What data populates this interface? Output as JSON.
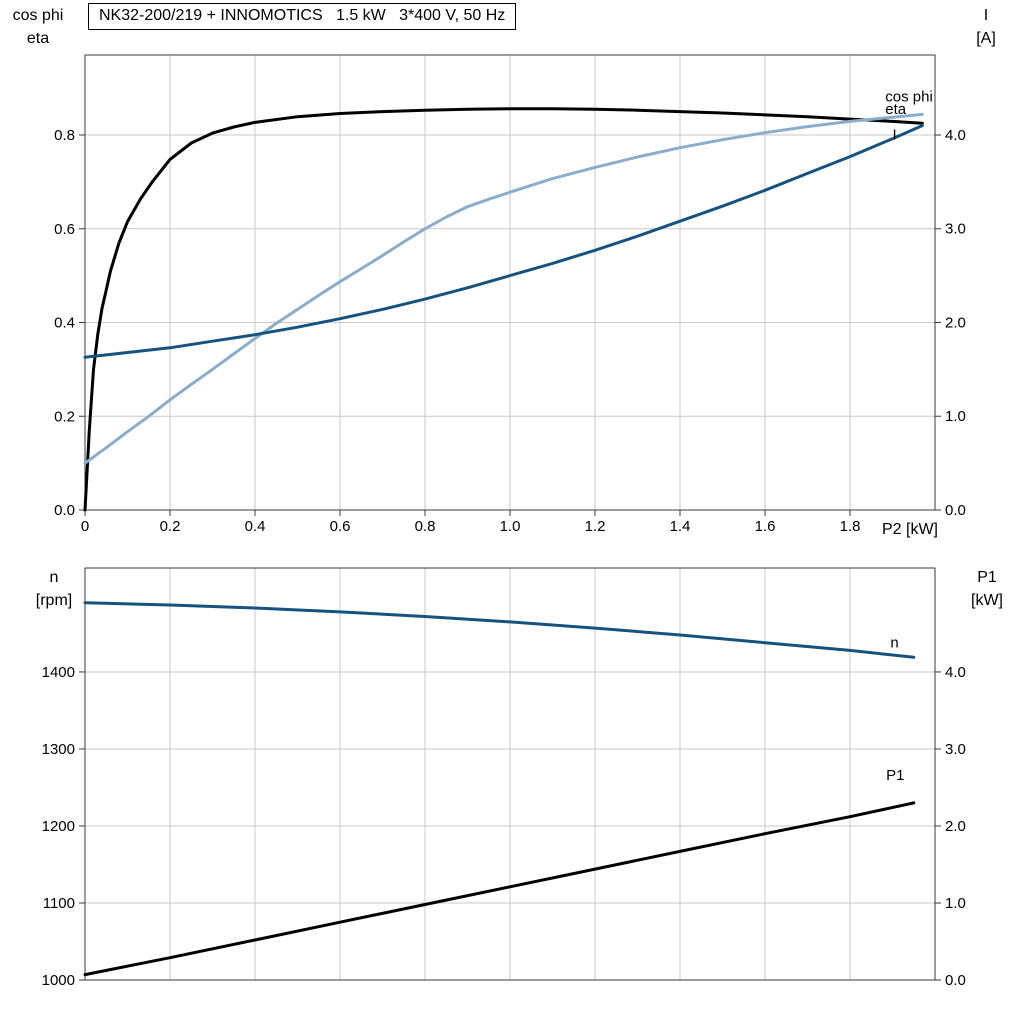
{
  "theme": {
    "background": "#ffffff",
    "frame": "#3a3a3a",
    "grid": "#c9c9c9",
    "tick_text": "#000000",
    "black": "#000000",
    "dark_blue": "#16527f",
    "light_blue": "#8aadcc"
  },
  "title_box": {
    "text": "NK32-200/219 + INNOMOTICS   1.5 kW   3*400 V, 50 Hz"
  },
  "chart_data": [
    {
      "id": "electrical-curves",
      "type": "line",
      "title": "NK32-200/219 + INNOMOTICS   1.5 kW   3*400 V, 50 Hz",
      "xlabel": "P2 [kW]",
      "xlim": [
        0,
        2
      ],
      "x_ticks": [
        0,
        0.2,
        0.4,
        0.6,
        0.8,
        1.0,
        1.2,
        1.4,
        1.6,
        1.8
      ],
      "x_tick_labels": [
        "0",
        "0.2",
        "0.4",
        "0.6",
        "0.8",
        "1.0",
        "1.2",
        "1.4",
        "1.6",
        "1.8"
      ],
      "grid": true,
      "legend_position": "curve-end-labels",
      "left_axis": {
        "title": [
          "cos phi",
          "eta"
        ],
        "lim": [
          0,
          0.9707
        ],
        "ticks": [
          0,
          0.2,
          0.4,
          0.6,
          0.8
        ],
        "tick_labels": [
          "0.0",
          "0.2",
          "0.4",
          "0.6",
          "0.8"
        ]
      },
      "right_axis": {
        "title": [
          "I",
          "[A]"
        ],
        "lim": [
          0,
          4.8533
        ],
        "ticks": [
          0,
          1,
          2,
          3,
          4
        ],
        "tick_labels": [
          "0.0",
          "1.0",
          "2.0",
          "3.0",
          "4.0"
        ]
      },
      "series": [
        {
          "name": "eta",
          "axis": "left",
          "color": "#000000",
          "label": {
            "text": "eta",
            "x": 1.883,
            "y": 0.845
          },
          "points": [
            [
              0,
              0
            ],
            [
              0.01,
              0.17
            ],
            [
              0.02,
              0.3
            ],
            [
              0.03,
              0.375
            ],
            [
              0.04,
              0.43
            ],
            [
              0.05,
              0.47
            ],
            [
              0.06,
              0.51
            ],
            [
              0.08,
              0.57
            ],
            [
              0.1,
              0.615
            ],
            [
              0.13,
              0.663
            ],
            [
              0.16,
              0.702
            ],
            [
              0.2,
              0.748
            ],
            [
              0.25,
              0.783
            ],
            [
              0.3,
              0.804
            ],
            [
              0.35,
              0.817
            ],
            [
              0.4,
              0.827
            ],
            [
              0.5,
              0.839
            ],
            [
              0.6,
              0.846
            ],
            [
              0.7,
              0.85
            ],
            [
              0.8,
              0.853
            ],
            [
              0.9,
              0.855
            ],
            [
              1.0,
              0.856
            ],
            [
              1.1,
              0.856
            ],
            [
              1.2,
              0.855
            ],
            [
              1.3,
              0.853
            ],
            [
              1.4,
              0.85
            ],
            [
              1.5,
              0.847
            ],
            [
              1.6,
              0.843
            ],
            [
              1.7,
              0.839
            ],
            [
              1.8,
              0.834
            ],
            [
              1.9,
              0.829
            ],
            [
              1.97,
              0.825
            ]
          ]
        },
        {
          "name": "cos phi",
          "axis": "left",
          "color": "#8aadcc",
          "label": {
            "text": "cos phi",
            "x": 1.883,
            "y": 0.872
          },
          "points": [
            [
              0,
              0.1
            ],
            [
              0.05,
              0.133
            ],
            [
              0.1,
              0.167
            ],
            [
              0.15,
              0.2
            ],
            [
              0.2,
              0.235
            ],
            [
              0.25,
              0.268
            ],
            [
              0.3,
              0.3
            ],
            [
              0.35,
              0.333
            ],
            [
              0.4,
              0.366
            ],
            [
              0.45,
              0.398
            ],
            [
              0.5,
              0.428
            ],
            [
              0.55,
              0.458
            ],
            [
              0.6,
              0.487
            ],
            [
              0.65,
              0.515
            ],
            [
              0.7,
              0.543
            ],
            [
              0.75,
              0.572
            ],
            [
              0.8,
              0.6
            ],
            [
              0.85,
              0.625
            ],
            [
              0.9,
              0.647
            ],
            [
              0.95,
              0.663
            ],
            [
              1.0,
              0.678
            ],
            [
              1.1,
              0.707
            ],
            [
              1.2,
              0.731
            ],
            [
              1.3,
              0.753
            ],
            [
              1.4,
              0.773
            ],
            [
              1.5,
              0.79
            ],
            [
              1.6,
              0.805
            ],
            [
              1.7,
              0.818
            ],
            [
              1.8,
              0.829
            ],
            [
              1.9,
              0.838
            ],
            [
              1.97,
              0.844
            ]
          ]
        },
        {
          "name": "I",
          "axis": "right",
          "color": "#16527f",
          "label": {
            "text": "I",
            "x": 1.9,
            "y": 3.95
          },
          "points": [
            [
              0,
              1.63
            ],
            [
              0.1,
              1.68
            ],
            [
              0.2,
              1.73
            ],
            [
              0.3,
              1.8
            ],
            [
              0.4,
              1.87
            ],
            [
              0.5,
              1.95
            ],
            [
              0.6,
              2.04
            ],
            [
              0.7,
              2.14
            ],
            [
              0.8,
              2.25
            ],
            [
              0.9,
              2.37
            ],
            [
              1.0,
              2.5
            ],
            [
              1.1,
              2.63
            ],
            [
              1.2,
              2.77
            ],
            [
              1.3,
              2.92
            ],
            [
              1.4,
              3.08
            ],
            [
              1.5,
              3.24
            ],
            [
              1.6,
              3.41
            ],
            [
              1.7,
              3.59
            ],
            [
              1.8,
              3.77
            ],
            [
              1.9,
              3.96
            ],
            [
              1.97,
              4.1
            ]
          ]
        }
      ]
    },
    {
      "id": "speed-power-curves",
      "type": "line",
      "title": "",
      "xlabel": "",
      "xlim": [
        0,
        2
      ],
      "x_ticks": [
        0,
        0.2,
        0.4,
        0.6,
        0.8,
        1.0,
        1.2,
        1.4,
        1.6,
        1.8
      ],
      "x_tick_labels": [],
      "grid": true,
      "legend_position": "curve-end-labels",
      "left_axis": {
        "title": [
          "n",
          "[rpm]"
        ],
        "lim": [
          1000,
          1535
        ],
        "ticks": [
          1000,
          1100,
          1200,
          1300,
          1400
        ],
        "tick_labels": [
          "1000",
          "1100",
          "1200",
          "1300",
          "1400"
        ]
      },
      "right_axis": {
        "title": [
          "P1",
          "[kW]"
        ],
        "lim": [
          0,
          5.35
        ],
        "ticks": [
          0,
          1,
          2,
          3,
          4
        ],
        "tick_labels": [
          "0.0",
          "1.0",
          "2.0",
          "3.0",
          "4.0"
        ]
      },
      "series": [
        {
          "name": "n",
          "axis": "left",
          "color": "#16527f",
          "label": {
            "text": "n",
            "x": 1.895,
            "y": 1432
          },
          "points": [
            [
              0,
              1490
            ],
            [
              0.2,
              1487
            ],
            [
              0.4,
              1483
            ],
            [
              0.6,
              1478
            ],
            [
              0.8,
              1472
            ],
            [
              1.0,
              1465
            ],
            [
              1.2,
              1457
            ],
            [
              1.4,
              1448
            ],
            [
              1.6,
              1438
            ],
            [
              1.8,
              1428
            ],
            [
              1.95,
              1419
            ]
          ]
        },
        {
          "name": "P1",
          "axis": "right",
          "color": "#000000",
          "label": {
            "text": "P1",
            "x": 1.885,
            "y": 2.6
          },
          "points": [
            [
              0,
              0.07
            ],
            [
              0.2,
              0.29
            ],
            [
              0.4,
              0.52
            ],
            [
              0.6,
              0.75
            ],
            [
              0.8,
              0.98
            ],
            [
              1.0,
              1.21
            ],
            [
              1.2,
              1.44
            ],
            [
              1.4,
              1.67
            ],
            [
              1.6,
              1.9
            ],
            [
              1.8,
              2.12
            ],
            [
              1.95,
              2.3
            ]
          ]
        }
      ]
    }
  ]
}
